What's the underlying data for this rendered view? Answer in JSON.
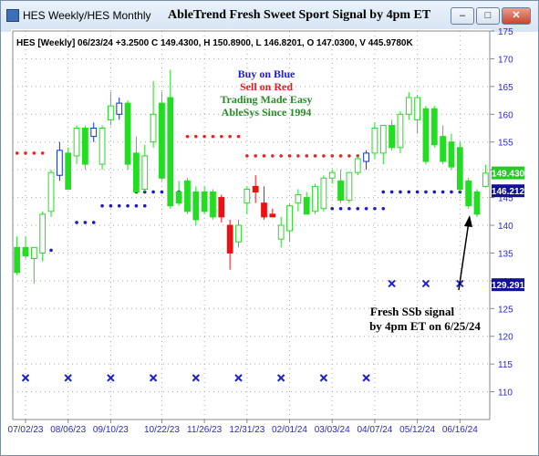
{
  "window": {
    "title": "HES Weekly/HES Monthly",
    "chart_title": "AbleTrend Fresh Sweet Sport Signal by 4pm ET",
    "buttons": {
      "minimize": "–",
      "maximize": "□",
      "close": "✕"
    }
  },
  "colors": {
    "up_candle": "#22dd22",
    "down_candle": "#ee1111",
    "blue_candle": "#1133cc",
    "grid_dot": "#aaaaaa",
    "axis": "#888888",
    "axis_label": "#2a2acc",
    "buy_dot": "#1a1acc",
    "sell_dot": "#ee2222",
    "x_marker": "#2222cc",
    "price_box_last": "#22cc22",
    "price_box_stop": "#111199",
    "price_box_target": "#111199"
  },
  "chart_data": {
    "type": "candlestick",
    "info_line": "HES [Weekly] 06/23/24 +3.2500 C 149.4300, H 150.8900, L 146.8201, O 147.0300, V 445.9780K",
    "legend_lines": [
      {
        "text": "Buy on Blue",
        "color": "#2020d0"
      },
      {
        "text": "Sell on Red",
        "color": "#e02020"
      },
      {
        "text": "Trading Made Easy",
        "color": "#2a8a2a"
      },
      {
        "text": "AbleSys Since 1994",
        "color": "#2a8a2a"
      }
    ],
    "annotation_lines": [
      "Fresh SSb signal",
      "by 4pm ET on 6/25/24"
    ],
    "ylim": [
      105,
      175
    ],
    "yticks": [
      110,
      115,
      120,
      125,
      130,
      135,
      140,
      145,
      150,
      155,
      160,
      165,
      170,
      175
    ],
    "x_tick_labels": [
      {
        "label": "07/02/23",
        "index": 1
      },
      {
        "label": "08/06/23",
        "index": 6
      },
      {
        "label": "09/10/23",
        "index": 11
      },
      {
        "label": "10/22/23",
        "index": 17
      },
      {
        "label": "11/26/23",
        "index": 22
      },
      {
        "label": "12/31/23",
        "index": 27
      },
      {
        "label": "02/01/24",
        "index": 32
      },
      {
        "label": "03/03/24",
        "index": 37
      },
      {
        "label": "04/07/24",
        "index": 42
      },
      {
        "label": "05/12/24",
        "index": 47
      },
      {
        "label": "06/16/24",
        "index": 52
      }
    ],
    "candles": [
      {
        "o": 136,
        "h": 138,
        "l": 131,
        "c": 131.5,
        "col": "up"
      },
      {
        "o": 136,
        "h": 138,
        "l": 134,
        "c": 134.5,
        "col": "up"
      },
      {
        "o": 134,
        "h": 136,
        "l": 129.5,
        "c": 136,
        "col": "up"
      },
      {
        "o": 135,
        "h": 142.5,
        "l": 133.5,
        "c": 142,
        "col": "up"
      },
      {
        "o": 142.5,
        "h": 150,
        "l": 141.5,
        "c": 149.5,
        "col": "up"
      },
      {
        "o": 149,
        "h": 155,
        "l": 148,
        "c": 153.5,
        "col": "blue"
      },
      {
        "o": 153,
        "h": 154,
        "l": 146.5,
        "c": 146.5,
        "col": "up"
      },
      {
        "o": 152.5,
        "h": 158,
        "l": 151,
        "c": 157.5,
        "col": "up"
      },
      {
        "o": 157.5,
        "h": 158,
        "l": 150,
        "c": 151,
        "col": "up"
      },
      {
        "o": 156,
        "h": 158.5,
        "l": 155,
        "c": 157.5,
        "col": "blue"
      },
      {
        "o": 151,
        "h": 158,
        "l": 150,
        "c": 157.5,
        "col": "up"
      },
      {
        "o": 159,
        "h": 164,
        "l": 158,
        "c": 161.5,
        "col": "up"
      },
      {
        "o": 160,
        "h": 163,
        "l": 159,
        "c": 162,
        "col": "blue"
      },
      {
        "o": 162,
        "h": 162.5,
        "l": 150,
        "c": 151,
        "col": "up"
      },
      {
        "o": 153,
        "h": 156,
        "l": 146,
        "c": 146,
        "col": "up"
      },
      {
        "o": 146.5,
        "h": 154.5,
        "l": 146,
        "c": 152.5,
        "col": "up"
      },
      {
        "o": 155,
        "h": 166,
        "l": 154,
        "c": 160,
        "col": "up"
      },
      {
        "o": 162,
        "h": 164,
        "l": 148,
        "c": 148.5,
        "col": "up"
      },
      {
        "o": 163,
        "h": 168,
        "l": 143,
        "c": 143.5,
        "col": "up"
      },
      {
        "o": 146,
        "h": 148,
        "l": 143.5,
        "c": 144,
        "col": "up"
      },
      {
        "o": 148,
        "h": 148.5,
        "l": 142,
        "c": 142.5,
        "col": "up"
      },
      {
        "o": 146,
        "h": 147,
        "l": 140,
        "c": 141,
        "col": "up"
      },
      {
        "o": 146,
        "h": 147,
        "l": 142,
        "c": 142.5,
        "col": "up"
      },
      {
        "o": 146,
        "h": 146.5,
        "l": 141,
        "c": 141.5,
        "col": "up"
      },
      {
        "o": 145,
        "h": 145.5,
        "l": 140.5,
        "c": 141.5,
        "col": "down"
      },
      {
        "o": 140,
        "h": 141,
        "l": 132,
        "c": 135,
        "col": "down"
      },
      {
        "o": 137,
        "h": 141,
        "l": 136,
        "c": 140,
        "col": "up"
      },
      {
        "o": 144,
        "h": 147,
        "l": 142,
        "c": 146.5,
        "col": "up"
      },
      {
        "o": 147,
        "h": 149,
        "l": 144,
        "c": 146,
        "col": "down"
      },
      {
        "o": 144,
        "h": 147,
        "l": 141,
        "c": 141.5,
        "col": "down"
      },
      {
        "o": 142,
        "h": 143,
        "l": 141.5,
        "c": 141.5,
        "col": "down"
      },
      {
        "o": 137.5,
        "h": 141.5,
        "l": 136,
        "c": 140,
        "col": "up"
      },
      {
        "o": 139,
        "h": 144,
        "l": 137,
        "c": 143.5,
        "col": "up"
      },
      {
        "o": 144,
        "h": 146.5,
        "l": 142.5,
        "c": 145.5,
        "col": "up"
      },
      {
        "o": 145,
        "h": 146,
        "l": 142,
        "c": 142,
        "col": "up"
      },
      {
        "o": 142.5,
        "h": 147.5,
        "l": 142,
        "c": 147,
        "col": "up"
      },
      {
        "o": 143,
        "h": 149,
        "l": 142.5,
        "c": 148.5,
        "col": "up"
      },
      {
        "o": 148.5,
        "h": 150,
        "l": 147.5,
        "c": 149.5,
        "col": "up"
      },
      {
        "o": 148,
        "h": 150,
        "l": 144,
        "c": 144.5,
        "col": "up"
      },
      {
        "o": 144.5,
        "h": 149.5,
        "l": 144,
        "c": 149.5,
        "col": "up"
      },
      {
        "o": 149.5,
        "h": 152.5,
        "l": 149,
        "c": 152,
        "col": "up"
      },
      {
        "o": 151.5,
        "h": 153.5,
        "l": 150,
        "c": 153,
        "col": "blue"
      },
      {
        "o": 153,
        "h": 158.5,
        "l": 152,
        "c": 157.5,
        "col": "up"
      },
      {
        "o": 153,
        "h": 158,
        "l": 151,
        "c": 158,
        "col": "up"
      },
      {
        "o": 158,
        "h": 159,
        "l": 153.5,
        "c": 154,
        "col": "up"
      },
      {
        "o": 154,
        "h": 160.5,
        "l": 153,
        "c": 160,
        "col": "up"
      },
      {
        "o": 160,
        "h": 164,
        "l": 159,
        "c": 163,
        "col": "up"
      },
      {
        "o": 159,
        "h": 163.5,
        "l": 156.5,
        "c": 163,
        "col": "up"
      },
      {
        "o": 161,
        "h": 161.5,
        "l": 151,
        "c": 151.5,
        "col": "up"
      },
      {
        "o": 161,
        "h": 161.5,
        "l": 154,
        "c": 154.5,
        "col": "up"
      },
      {
        "o": 156,
        "h": 158,
        "l": 151,
        "c": 151.5,
        "col": "up"
      },
      {
        "o": 155,
        "h": 156.5,
        "l": 150,
        "c": 150.5,
        "col": "up"
      },
      {
        "o": 154,
        "h": 155,
        "l": 146,
        "c": 146.5,
        "col": "up"
      },
      {
        "o": 148,
        "h": 148.5,
        "l": 143,
        "c": 143.5,
        "col": "up"
      },
      {
        "o": 146,
        "h": 146.5,
        "l": 141.5,
        "c": 142,
        "col": "up"
      },
      {
        "o": 147,
        "h": 150.9,
        "l": 146.8,
        "c": 149.4,
        "col": "up"
      }
    ],
    "sell_stops": [
      {
        "from": 0,
        "to": 3,
        "y": 153
      },
      {
        "from": 20,
        "to": 26,
        "y": 156
      },
      {
        "from": 27,
        "to": 35,
        "y": 152.5
      },
      {
        "from": 36,
        "to": 40,
        "y": 152.5
      }
    ],
    "buy_stops": [
      {
        "from": 3,
        "to": 4,
        "y": 135.5
      },
      {
        "from": 7,
        "to": 9,
        "y": 140.5
      },
      {
        "from": 10,
        "to": 15,
        "y": 143.5
      },
      {
        "from": 14,
        "to": 19,
        "y": 146
      },
      {
        "from": 37,
        "to": 43,
        "y": 143
      },
      {
        "from": 43,
        "to": 52,
        "y": 146
      }
    ],
    "x_markers": [
      {
        "indices": [
          1,
          6,
          11,
          16,
          21,
          26,
          31,
          36,
          41
        ],
        "y": 112.5
      },
      {
        "indices": [
          44,
          48,
          52
        ],
        "y": 129.5
      }
    ],
    "price_boxes": [
      {
        "value": "149.430",
        "y": 149.43,
        "style": "last"
      },
      {
        "value": "146.212",
        "y": 146.21,
        "style": "stop"
      },
      {
        "value": "129.291",
        "y": 129.29,
        "style": "target"
      }
    ]
  }
}
